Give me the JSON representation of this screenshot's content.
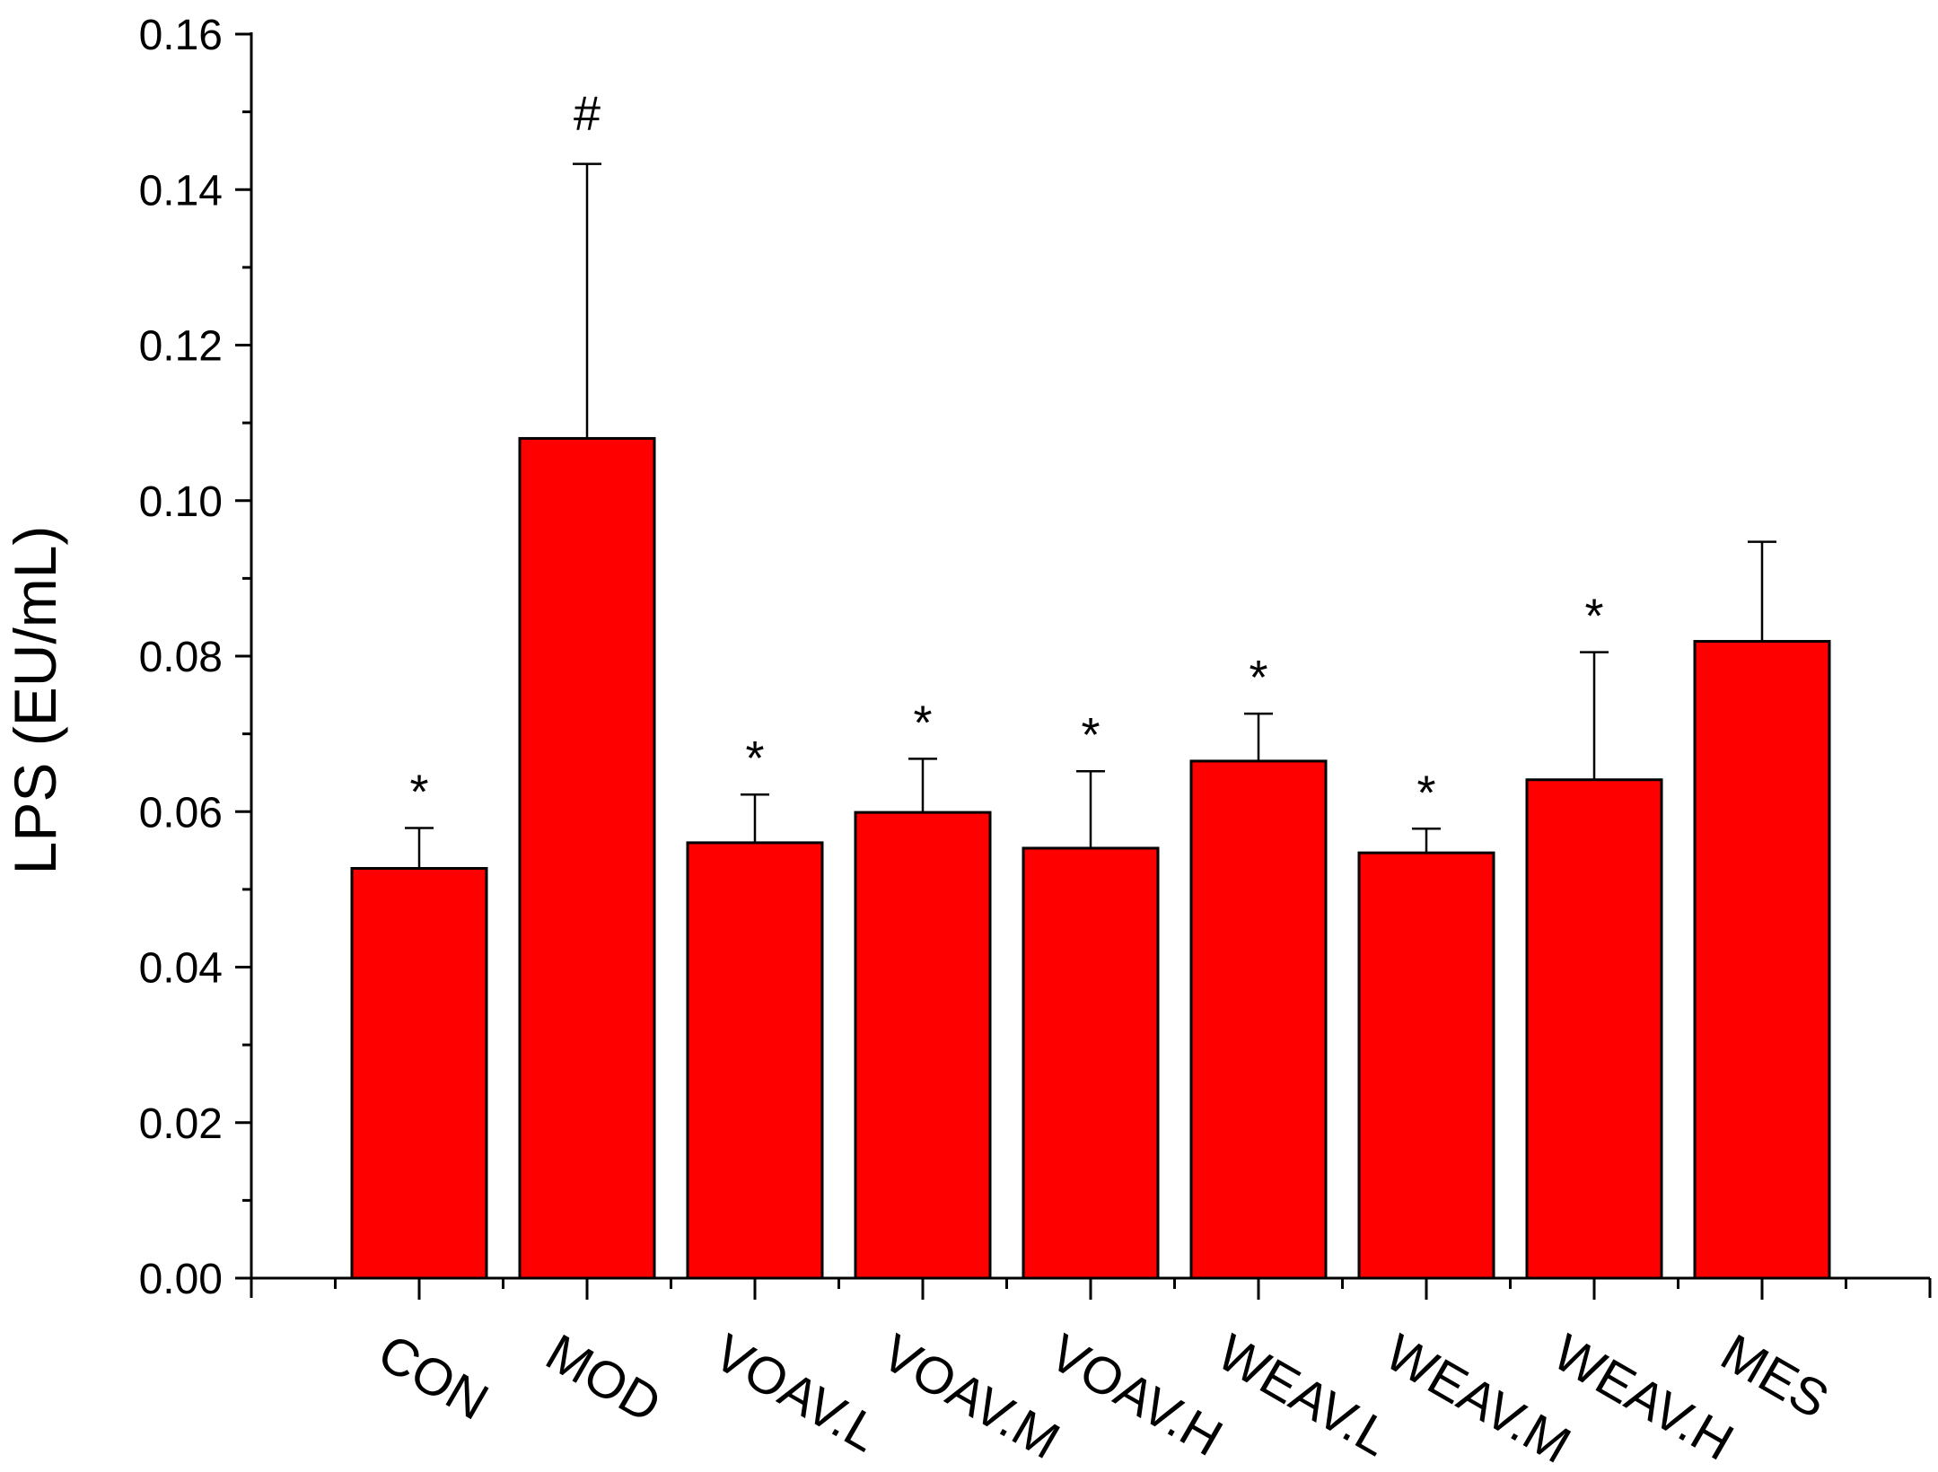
{
  "chart_data": {
    "type": "bar",
    "title": "",
    "xlabel": "",
    "ylabel": "LPS (EU/mL)",
    "ylim": [
      0,
      0.16
    ],
    "yticks": [
      "0.00",
      "0.02",
      "0.04",
      "0.06",
      "0.08",
      "0.10",
      "0.12",
      "0.14",
      "0.16"
    ],
    "grid": false,
    "legend": "none",
    "bar_color": "#ff0000",
    "categories": [
      "CON",
      "MOD",
      "VOAV.L",
      "VOAV.M",
      "VOAV.H",
      "WEAV.L",
      "WEAV.M",
      "WEAV.H",
      "MES"
    ],
    "values": [
      0.0527,
      0.108,
      0.056,
      0.0599,
      0.0553,
      0.0665,
      0.0547,
      0.0641,
      0.0819
    ],
    "errors": [
      0.0052,
      0.0353,
      0.0062,
      0.0069,
      0.0099,
      0.0061,
      0.0031,
      0.0164,
      0.0128
    ],
    "annotations": [
      "*",
      "#",
      "*",
      "*",
      "*",
      "*",
      "*",
      "*",
      ""
    ]
  }
}
